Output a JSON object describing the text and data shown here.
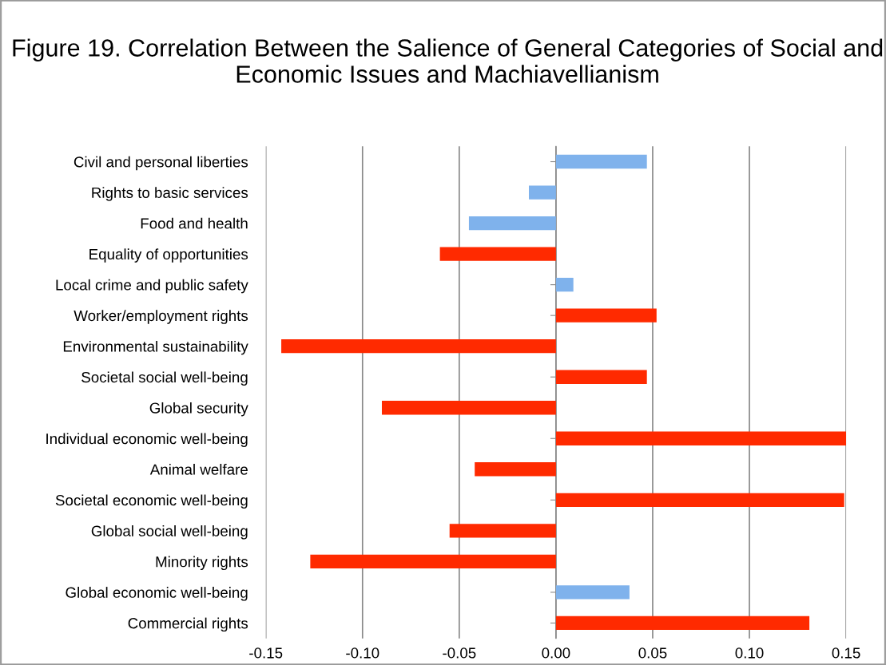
{
  "chart_data": {
    "type": "bar",
    "orientation": "horizontal",
    "title": "Figure 19. Correlation Between the Salience of General Categories of Social and Economic Issues and Machiavellianism",
    "categories": [
      "Civil and personal liberties",
      "Rights to basic services",
      "Food and health",
      "Equality of opportunities",
      "Local crime and public safety",
      "Worker/employment rights",
      "Environmental sustainability",
      "Societal social well-being",
      "Global security",
      "Individual economic well-being",
      "Animal welfare",
      "Societal economic well-being",
      "Global social well-being",
      "Minority rights",
      "Global economic well-being",
      "Commercial rights"
    ],
    "values": [
      0.047,
      -0.014,
      -0.045,
      -0.06,
      0.009,
      0.052,
      -0.142,
      0.047,
      -0.09,
      0.15,
      -0.042,
      0.149,
      -0.055,
      -0.127,
      0.038,
      0.131
    ],
    "colors": [
      "#7fb2ec",
      "#7fb2ec",
      "#7fb2ec",
      "#ff2a00",
      "#7fb2ec",
      "#ff2a00",
      "#ff2a00",
      "#ff2a00",
      "#ff2a00",
      "#ff2a00",
      "#ff2a00",
      "#ff2a00",
      "#ff2a00",
      "#ff2a00",
      "#7fb2ec",
      "#ff2a00"
    ],
    "xlim": [
      -0.15,
      0.15
    ],
    "xticks": [
      {
        "value": -0.15,
        "label": "-0.15"
      },
      {
        "value": -0.1,
        "label": "-0.10"
      },
      {
        "value": -0.05,
        "label": "-0.05"
      },
      {
        "value": 0,
        "label": "0.00"
      },
      {
        "value": 0.05,
        "label": "0.05"
      },
      {
        "value": 0.1,
        "label": "0.10"
      },
      {
        "value": 0.15,
        "label": "0.15"
      }
    ],
    "grid": "x"
  }
}
